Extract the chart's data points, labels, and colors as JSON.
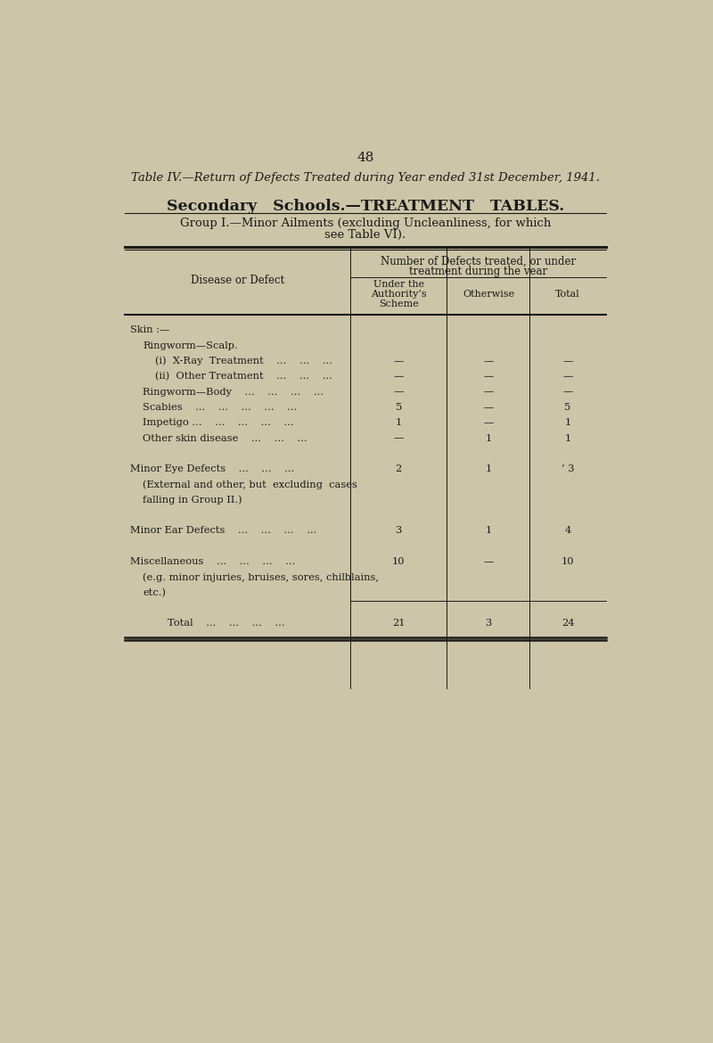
{
  "page_number": "48",
  "title1": "Table IV.—Return of Defects Treated during Year ended 31st December, 1941.",
  "title2": "Secondary   Schools.—TREATMENT   TABLES.",
  "title3a": "Group I.—Minor Ailments (excluding Uncleanliness, for which",
  "title3b": "see Table VI).",
  "hdr_number": "Number of Defects treated, or under",
  "hdr_number2": "treatment during the vear",
  "hdr_disease": "Disease or Defect",
  "hdr_auth1": "Under the",
  "hdr_auth2": "Authority’s",
  "hdr_auth3": "Scheme",
  "hdr_otherwise": "Otherwise",
  "hdr_total": "Total",
  "bg_color": "#ccc5a8",
  "text_color": "#1c1a18",
  "line_color": "#1c1a18",
  "rows": [
    {
      "label": "Skin :—",
      "indent": 0,
      "small_caps": true,
      "c1": "",
      "c2": "",
      "c3": ""
    },
    {
      "label": "Ringworm—Scalp.",
      "indent": 1,
      "small_caps": false,
      "c1": "",
      "c2": "",
      "c3": ""
    },
    {
      "label": "(i)  X-Ray  Treatment    ...    ...    ...",
      "indent": 2,
      "small_caps": false,
      "c1": "—",
      "c2": "—",
      "c3": "—"
    },
    {
      "label": "(ii)  Other Treatment    ...    ...    ...",
      "indent": 2,
      "small_caps": false,
      "c1": "—",
      "c2": "—",
      "c3": "—"
    },
    {
      "label": "Ringworm—Body    ...    ...    ...    ...",
      "indent": 1,
      "small_caps": false,
      "c1": "—",
      "c2": "—",
      "c3": "—"
    },
    {
      "label": "Scabies    ...    ...    ...    ...    ...",
      "indent": 1,
      "small_caps": false,
      "c1": "5",
      "c2": "—",
      "c3": "5"
    },
    {
      "label": "Impetigo ...    ...    ...    ...    ...",
      "indent": 1,
      "small_caps": false,
      "c1": "1",
      "c2": "—",
      "c3": "1"
    },
    {
      "label": "Other skin disease    ...    ...    ...",
      "indent": 1,
      "small_caps": false,
      "c1": "—",
      "c2": "1",
      "c3": "1"
    },
    {
      "label": "",
      "indent": 0,
      "small_caps": false,
      "c1": "",
      "c2": "",
      "c3": ""
    },
    {
      "label": "Minor Eye Defects    ...    ...    ...",
      "indent": 0,
      "small_caps": true,
      "c1": "2",
      "c2": "1",
      "c3": "’ 3"
    },
    {
      "label": "(External and other, but  excluding  cases",
      "indent": 1,
      "small_caps": false,
      "c1": "",
      "c2": "",
      "c3": ""
    },
    {
      "label": "falling in Group II.)",
      "indent": 1,
      "small_caps": false,
      "c1": "",
      "c2": "",
      "c3": ""
    },
    {
      "label": "",
      "indent": 0,
      "small_caps": false,
      "c1": "",
      "c2": "",
      "c3": ""
    },
    {
      "label": "Minor Ear Defects    ...    ...    ...    ...",
      "indent": 0,
      "small_caps": true,
      "c1": "3",
      "c2": "1",
      "c3": "4"
    },
    {
      "label": "",
      "indent": 0,
      "small_caps": false,
      "c1": "",
      "c2": "",
      "c3": ""
    },
    {
      "label": "Miscellaneous    ...    ...    ...    ...",
      "indent": 0,
      "small_caps": true,
      "c1": "10",
      "c2": "—",
      "c3": "10"
    },
    {
      "label": "(e.g. minor injuries, bruises, sores, chilblains,",
      "indent": 1,
      "small_caps": false,
      "c1": "",
      "c2": "",
      "c3": ""
    },
    {
      "label": "etc.)",
      "indent": 1,
      "small_caps": false,
      "c1": "",
      "c2": "",
      "c3": "",
      "sep_below": true
    },
    {
      "label": "",
      "indent": 0,
      "small_caps": false,
      "c1": "",
      "c2": "",
      "c3": ""
    },
    {
      "label": "Total    ...    ...    ...    ...",
      "indent": 3,
      "small_caps": false,
      "c1": "21",
      "c2": "3",
      "c3": "24"
    }
  ]
}
